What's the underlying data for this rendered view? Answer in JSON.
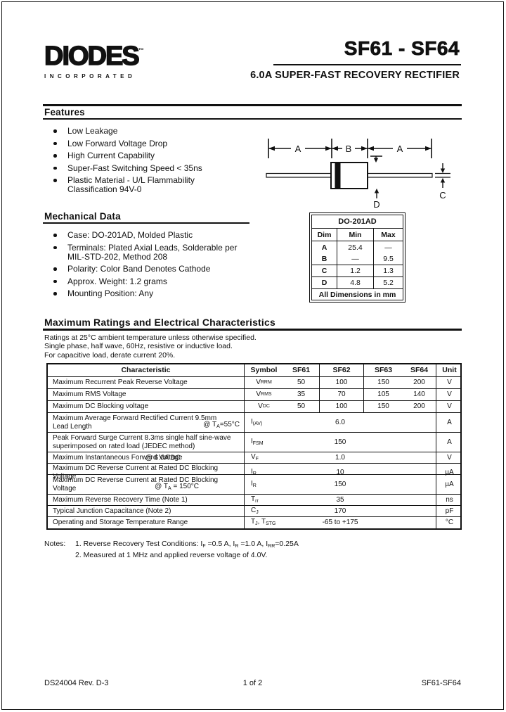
{
  "header": {
    "logo": {
      "name": "DIODES",
      "tm": "™",
      "tagline": "INCORPORATED"
    },
    "part_range": "SF61 - SF64",
    "subtitle": "6.0A SUPER-FAST RECOVERY RECTIFIER"
  },
  "features": {
    "heading": "Features",
    "items": [
      "Low Leakage",
      "Low Forward Voltage Drop",
      "High Current Capability",
      "Super-Fast Switching Speed < 35ns",
      "Plastic Material - U/L Flammability Classification 94V-0"
    ]
  },
  "package_diagram": {
    "labels": {
      "a1": "A",
      "b": "B",
      "a2": "A",
      "c": "C",
      "d": "D"
    }
  },
  "mechanical": {
    "heading": "Mechanical Data",
    "items": [
      "Case: DO-201AD, Molded Plastic",
      "Terminals: Plated Axial Leads, Solderable per MIL-STD-202, Method 208",
      "Polarity: Color Band Denotes Cathode",
      "Approx. Weight: 1.2 grams",
      "Mounting Position: Any"
    ]
  },
  "dim_table": {
    "title": "DO-201AD",
    "headers": [
      "Dim",
      "Min",
      "Max"
    ],
    "rows": [
      [
        "A",
        "25.4",
        "—"
      ],
      [
        "B",
        "—",
        "9.5"
      ],
      [
        "C",
        "1.2",
        "1.3"
      ],
      [
        "D",
        "4.8",
        "5.2"
      ]
    ],
    "footer": "All Dimensions in mm"
  },
  "ratings": {
    "heading": "Maximum Ratings and Electrical Characteristics",
    "conditions": [
      "Ratings at 25°C ambient temperature unless otherwise specified.",
      "Single phase, half wave, 60Hz, resistive or inductive load.",
      "For capacitive load, derate current 20%."
    ],
    "table": {
      "headers": [
        "Characteristic",
        "Symbol",
        "SF61",
        "SF62",
        "SF63",
        "SF64",
        "Unit"
      ],
      "rows": [
        {
          "characteristic": "Maximum Recurrent Peak Reverse Voltage",
          "symbol": "V<sub>RRM</sub>",
          "values": [
            "50",
            "100",
            "150",
            "200"
          ],
          "unit": "V"
        },
        {
          "characteristic": "Maximum RMS Voltage",
          "symbol": "V<sub>RMS</sub>",
          "values": [
            "35",
            "70",
            "105",
            "140"
          ],
          "unit": "V"
        },
        {
          "characteristic": "Maximum DC Blocking voltage",
          "symbol": "V<sub>DC</sub>",
          "values": [
            "50",
            "100",
            "150",
            "200"
          ],
          "unit": "V"
        },
        {
          "characteristic": "Maximum Average Forward Rectified Current 9.5mm Lead Length",
          "annotation": "@ T<sub>A</sub>=55°C",
          "symbol": "I<sub>(AV)</sub>",
          "value": "6.0",
          "unit": "A"
        },
        {
          "characteristic": "Peak Forward Surge Current 8.3ms single half sine-wave superimposed on rated load (JEDEC method)",
          "symbol": "I<sub>FSM</sub>",
          "value": "150",
          "unit": "A"
        },
        {
          "characteristic": "Maximum Instantaneous Forward Voltage",
          "annotation": "@ 6.0A DC",
          "symbol": "V<sub>F</sub>",
          "value": "1.0",
          "unit": "V"
        },
        {
          "characteristic": "Maximum DC Reverse Current at Rated DC Blocking Voltage",
          "symbol": "I<sub>R</sub>",
          "value": "10",
          "unit": "µA"
        },
        {
          "characteristic": "Maximum DC Reverse Current at Rated DC Blocking Voltage",
          "annotation": "@ T<sub>A</sub> = 150°C",
          "symbol": "I<sub>R</sub>",
          "value": "150",
          "unit": "µA"
        },
        {
          "characteristic": "Maximum Reverse Recovery Time (Note 1)",
          "symbol": "T<sub>rr</sub>",
          "value": "35",
          "unit": "ns"
        },
        {
          "characteristic": "Typical Junction Capacitance (Note 2)",
          "symbol": "C<sub>J</sub>",
          "value": "170",
          "unit": "pF"
        },
        {
          "characteristic": "Operating and Storage Temperature Range",
          "symbol": "T<sub>J</sub>, T<sub>STG</sub>",
          "value": "-65 to +175",
          "unit": "°C"
        }
      ]
    }
  },
  "notes": {
    "label": "Notes:",
    "items": [
      "1. Reverse Recovery Test Conditions: I<sub>F</sub> =0.5 A, I<sub>R</sub> =1.0 A, I<sub>RR</sub>=0.25A",
      "2. Measured at 1 MHz and applied reverse voltage of 4.0V."
    ]
  },
  "footer": {
    "doc_number": "DS24004 Rev. D-3",
    "page": "1 of 2",
    "part": "SF61-SF64"
  }
}
